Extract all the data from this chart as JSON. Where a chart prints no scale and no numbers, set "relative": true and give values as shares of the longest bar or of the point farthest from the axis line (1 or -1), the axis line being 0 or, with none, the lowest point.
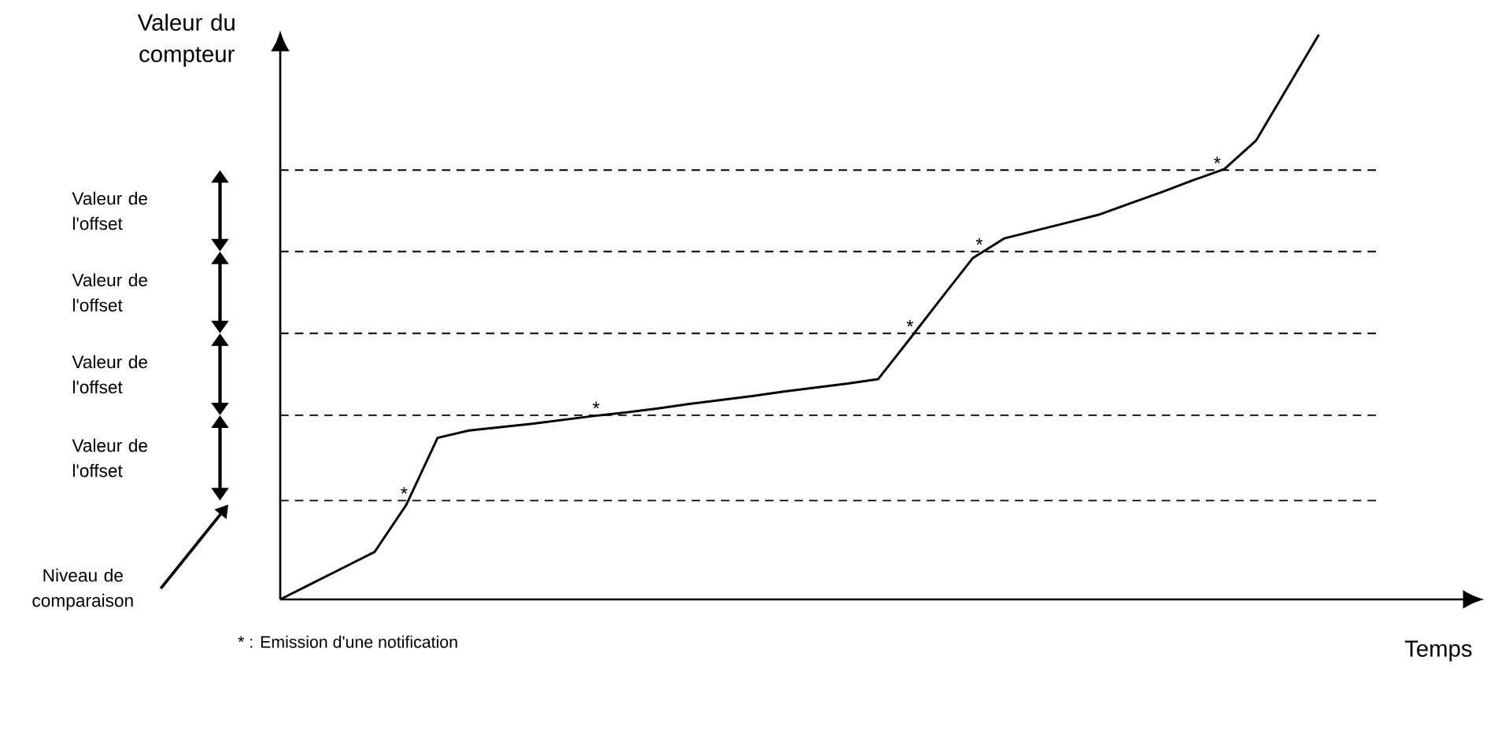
{
  "chart_data": {
    "type": "line",
    "relative": true,
    "xlabel": "Temps",
    "ylabel": "Valeur du compteur",
    "tick_labels": false,
    "categories": [
      null,
      null,
      null,
      null,
      null,
      null,
      null,
      null,
      null,
      null,
      null,
      null,
      null,
      null,
      null,
      null,
      null,
      null,
      null,
      null,
      null,
      null,
      null,
      null,
      null,
      null,
      null,
      null,
      null,
      null,
      null,
      null,
      null,
      null
    ],
    "series": [
      {
        "color": "#000000",
        "marker": "none",
        "line_style": "solid",
        "values": [
          0,
          0.028,
          0.056,
          0.084,
          0.167,
          0.286,
          0.299,
          0.305,
          0.311,
          0.318,
          0.325,
          0.331,
          0.338,
          0.346,
          0.353,
          0.36,
          0.368,
          0.375,
          0.382,
          0.39,
          0.461,
          0.533,
          0.604,
          0.639,
          0.653,
          0.667,
          0.681,
          0.701,
          0.721,
          0.742,
          0.762,
          0.812,
          0.906,
          1
        ]
      }
    ],
    "ref_lines": [
      {
        "axis": "y",
        "value": 0.175,
        "line_style": "dashed",
        "color": "#000000"
      },
      {
        "axis": "y",
        "value": 0.326,
        "line_style": "dashed",
        "color": "#000000"
      },
      {
        "axis": "y",
        "value": 0.471,
        "line_style": "dashed",
        "color": "#000000"
      },
      {
        "axis": "y",
        "value": 0.616,
        "line_style": "dashed",
        "color": "#000000"
      },
      {
        "axis": "y",
        "value": 0.76,
        "line_style": "dashed",
        "color": "#000000"
      }
    ],
    "annotations": [
      "Valeur de l'offset",
      "Valeur de l'offset",
      "Valeur de l'offset",
      "Valeur de l'offset",
      "Niveau de comparaison",
      {
        "text": "*",
        "y": 0.175
      },
      {
        "text": "*",
        "y": 0.326
      },
      {
        "text": "*",
        "y": 0.471
      },
      {
        "text": "*",
        "y": 0.616
      },
      {
        "text": "*",
        "y": 0.76
      },
      "* : Emission d'une notification"
    ]
  }
}
